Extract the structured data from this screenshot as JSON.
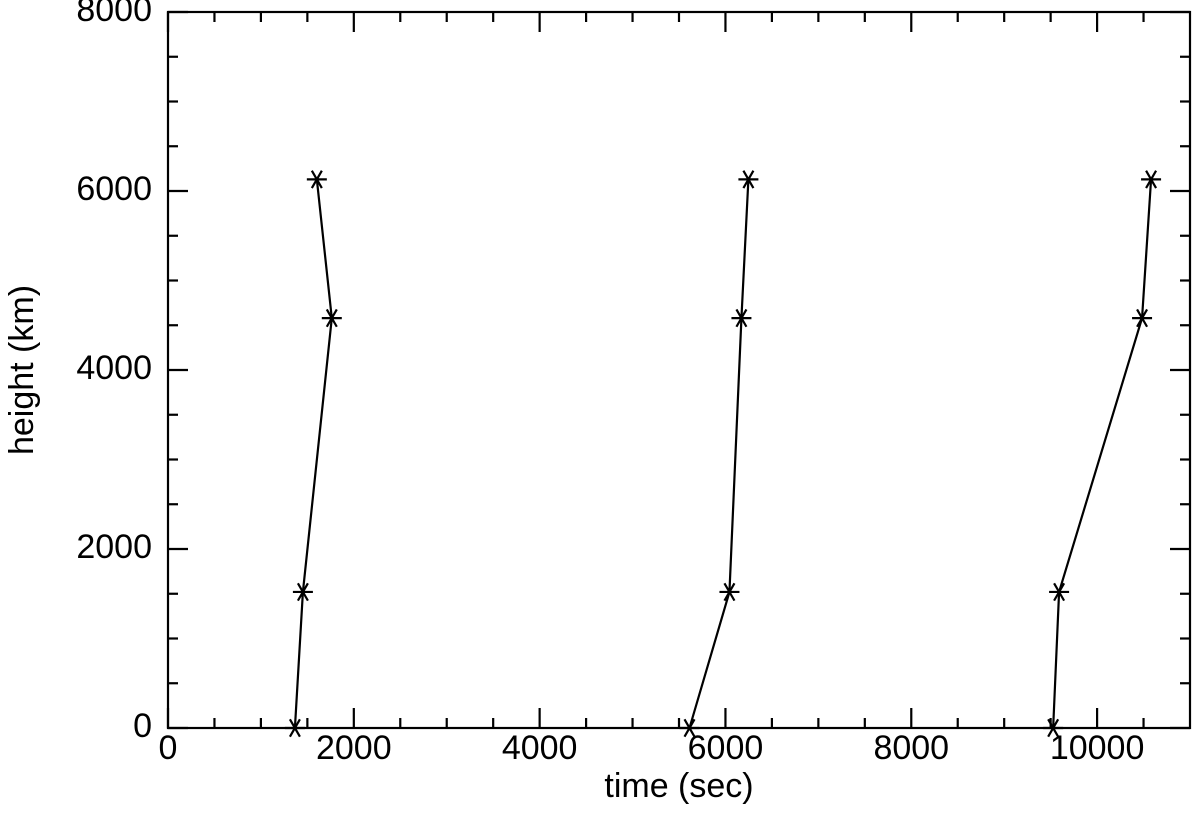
{
  "chart_data": {
    "type": "line",
    "xlabel": "time (sec)",
    "ylabel": "height (km)",
    "xlim": [
      0,
      11000
    ],
    "ylim": [
      0,
      8000
    ],
    "xticks": [
      0,
      2000,
      4000,
      6000,
      8000,
      10000
    ],
    "yticks": [
      0,
      2000,
      4000,
      6000,
      8000
    ],
    "xminorticks": [
      500,
      1000,
      1500,
      2500,
      3000,
      3500,
      4500,
      5000,
      5500,
      6500,
      7000,
      7500,
      8500,
      9000,
      9500,
      10500
    ],
    "yminorticks": [
      500,
      1000,
      1500,
      2500,
      3000,
      3500,
      4500,
      5000,
      5500,
      6500,
      7000,
      7500
    ],
    "marker": "asterisk",
    "series": [
      {
        "color": "#000000",
        "x": [
          1366,
          1452,
          1763,
          1602
        ],
        "values": [
          0,
          1520,
          4580,
          6130
        ]
      },
      {
        "color": "#000000",
        "x": [
          5613,
          6043,
          6172,
          6247
        ],
        "values": [
          0,
          1520,
          4580,
          6130
        ]
      },
      {
        "color": "#000000",
        "x": [
          9527,
          9591,
          10484,
          10581
        ],
        "values": [
          0,
          1520,
          4580,
          6130
        ]
      }
    ]
  }
}
